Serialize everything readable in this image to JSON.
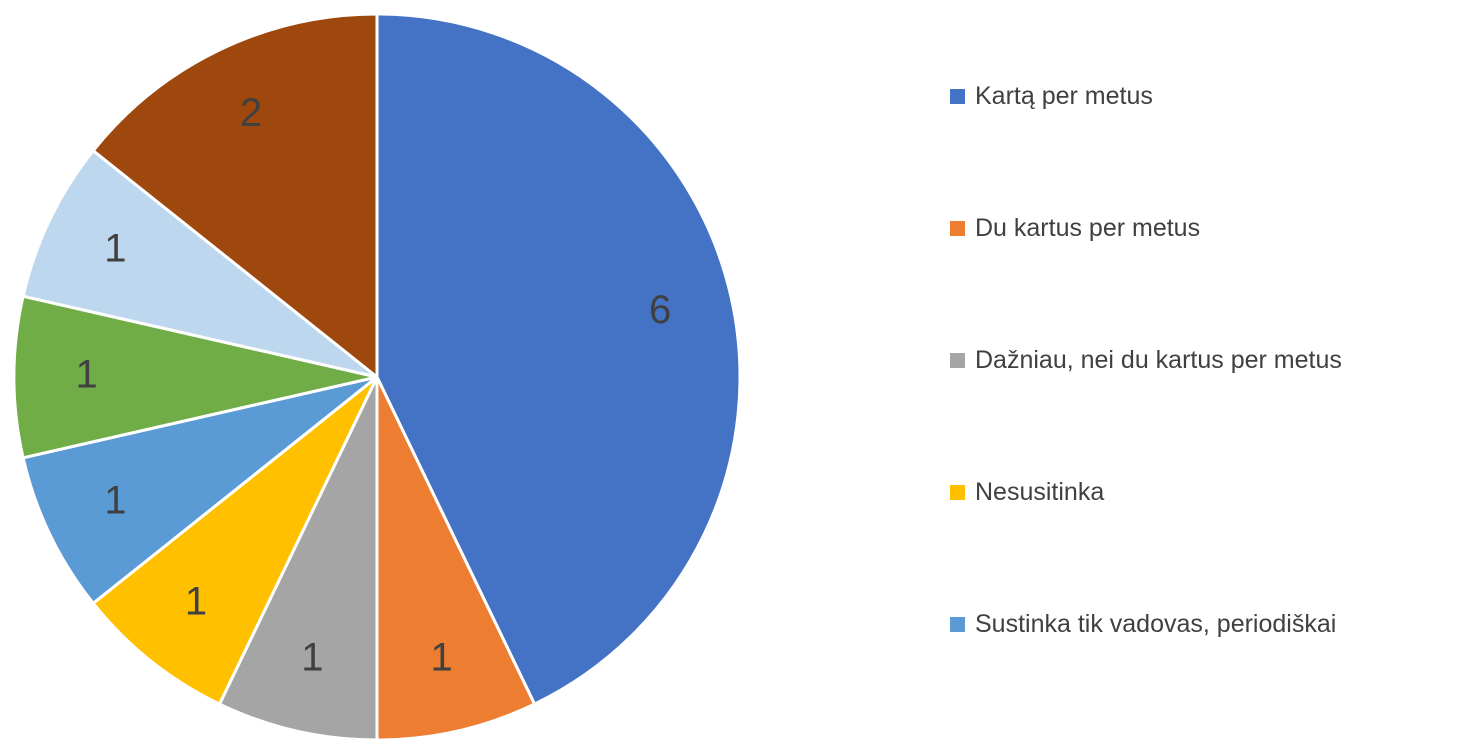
{
  "chart_data": {
    "type": "pie",
    "categories": [
      "Kartą per metus",
      "Du kartus per metus",
      "Dažniau, nei du kartus per metus",
      "Nesusitinka",
      "Sustinka tik vadovas, periodiškai",
      null,
      null,
      null
    ],
    "values": [
      6,
      1,
      1,
      1,
      1,
      1,
      1,
      2
    ],
    "colors": [
      "#4472c4",
      "#ed7d31",
      "#a5a5a5",
      "#ffc000",
      "#5b9bd5",
      "#70ad47",
      "#bdd7ee",
      "#9e480e"
    ],
    "legend": "right"
  }
}
